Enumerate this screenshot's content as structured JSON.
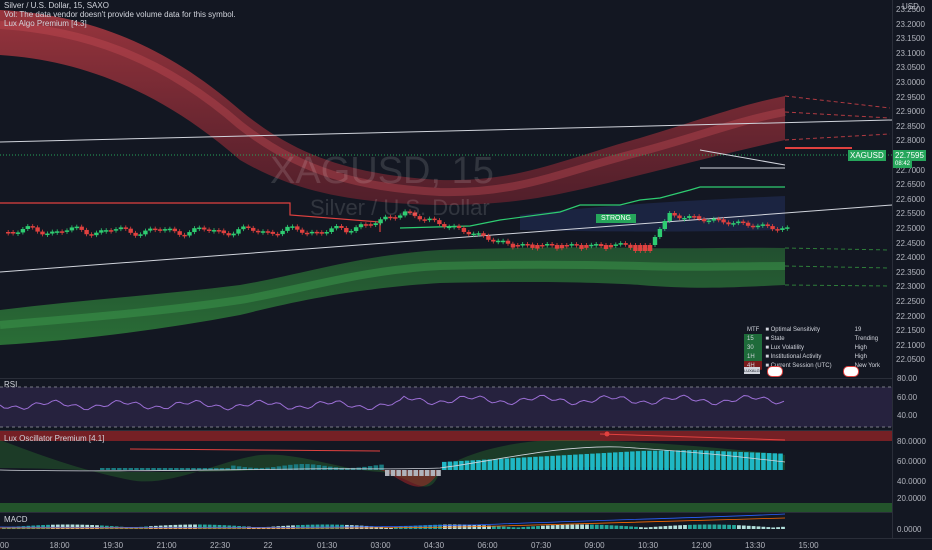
{
  "header": {
    "symbol_line": "Silver / U.S. Dollar, 15, SAXO",
    "vol_line": "Vol: The data vendor doesn't provide volume data for this symbol.",
    "indicator_line": "Lux Algo Premium [4.3]"
  },
  "watermark": {
    "ticker": "XAGUSD, 15",
    "name": "Silver / U.S. Dollar"
  },
  "price_axis": {
    "currency": "USD",
    "ticks": [
      "23.2500",
      "23.2000",
      "23.1500",
      "23.1000",
      "23.0500",
      "23.0000",
      "22.9500",
      "22.9000",
      "22.8500",
      "22.8000",
      "22.7500",
      "22.7000",
      "22.6500",
      "22.6000",
      "22.5500",
      "22.5000",
      "22.4500",
      "22.4000",
      "22.3500",
      "22.3000",
      "22.2500",
      "22.2000",
      "22.1500",
      "22.1000",
      "22.0500"
    ],
    "current_price": "22.7595",
    "countdown": "08:42",
    "price_tag": "XAGUSD"
  },
  "signal_label": "STRONG",
  "dashboard": {
    "rows": [
      {
        "tf": "MTF",
        "icon": "target-icon",
        "label": "Optimal  Sensitivity",
        "value": "19"
      },
      {
        "tf": "15",
        "icon": "flag-icon",
        "label": "State",
        "value": "Trending"
      },
      {
        "tf": "30",
        "icon": "chart-icon",
        "label": "Lux Volatility",
        "value": "High"
      },
      {
        "tf": "1H",
        "icon": "bank-icon",
        "label": "Institutional Activity",
        "value": "High"
      },
      {
        "tf": "4H",
        "icon": "clock-icon",
        "label": "Current Session (UTC)",
        "value": "New York"
      }
    ],
    "tf_colors": [
      "#131722",
      "#1e6b3a",
      "#1e6b3a",
      "#1e6b3a",
      "#7a1c1c"
    ],
    "logo_text": "LUXALGO"
  },
  "rsi_pane": {
    "label": "RSI",
    "ticks": [
      "80.00",
      "60.00",
      "40.00"
    ]
  },
  "osc_pane": {
    "label": "Lux Oscillator Premium [4.1]",
    "ticks": [
      "80.0000",
      "60.0000",
      "40.0000",
      "20.0000"
    ]
  },
  "macd_pane": {
    "label": "MACD",
    "ticks": [
      "0.0000"
    ]
  },
  "time_axis": {
    "labels": [
      "00",
      "18:00",
      "19:30",
      "21:00",
      "22:30",
      "22",
      "01:30",
      "03:00",
      "04:30",
      "06:00",
      "07:30",
      "09:00",
      "10:30",
      "12:00",
      "13:30",
      "15:00"
    ]
  },
  "colors": {
    "bull": "#2ecc71",
    "bear": "#e0413f",
    "accent_green": "#26a65b",
    "band_red": "#a3343a",
    "band_green": "#2a6f36",
    "osc_cyan": "#1fb7c4"
  }
}
